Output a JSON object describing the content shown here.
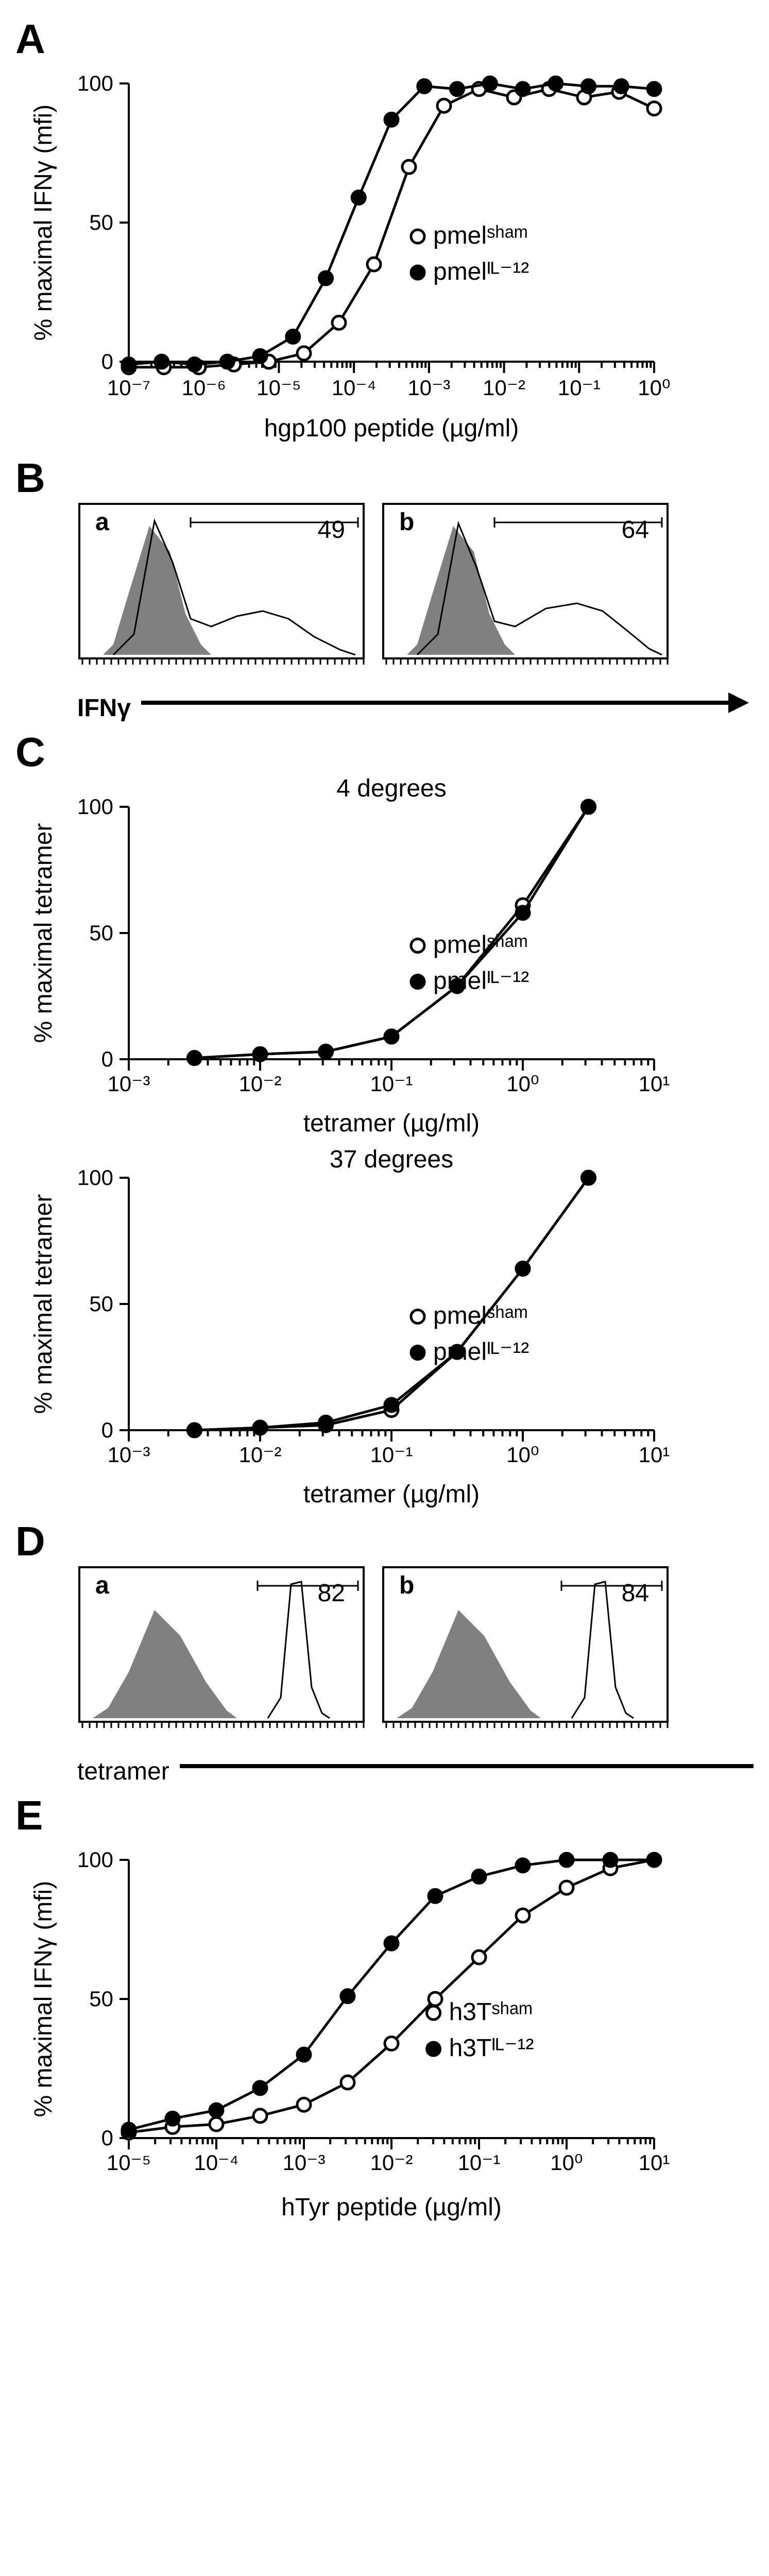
{
  "panelA": {
    "label": "A",
    "type": "line",
    "x_label": "hgp100 peptide (µg/ml)",
    "y_label": "% maximal IFNγ (mfi)",
    "x_ticks": [
      "10⁻⁷",
      "10⁻⁶",
      "10⁻⁵",
      "10⁻⁴",
      "10⁻³",
      "10⁻²",
      "10⁻¹",
      "10⁰"
    ],
    "y_ticks": [
      "0",
      "50",
      "100"
    ],
    "legend": [
      {
        "label": "pmelˢʰᵃᵐ",
        "marker": "open"
      },
      {
        "label": "pmelᴵᴸ⁻¹²",
        "marker": "filled"
      }
    ],
    "series_open": [
      -2,
      -2,
      -2,
      -1,
      0,
      3,
      14,
      35,
      70,
      92,
      98,
      95,
      98,
      95,
      97,
      91
    ],
    "series_filled": [
      -1,
      0,
      -1,
      0,
      2,
      9,
      30,
      59,
      87,
      99,
      98,
      100,
      98,
      100,
      99,
      99,
      98
    ]
  },
  "panelB": {
    "label": "B",
    "axis_label": "IFNγ",
    "hists": [
      {
        "sublabel": "a",
        "value": "49"
      },
      {
        "sublabel": "b",
        "value": "64"
      }
    ]
  },
  "panelC": {
    "label": "C",
    "titles": [
      "4 degrees",
      "37 degrees"
    ],
    "x_label": "tetramer (µg/ml)",
    "y_label": "% maximal tetramer",
    "x_ticks": [
      "10⁻³",
      "10⁻²",
      "10⁻¹",
      "10⁰",
      "10¹"
    ],
    "y_ticks": [
      "0",
      "50",
      "100"
    ],
    "legend": [
      {
        "label": "pmelˢʰᵃᵐ",
        "marker": "open"
      },
      {
        "label": "pmelᴵᴸ⁻¹²",
        "marker": "filled"
      }
    ],
    "c1_open": [
      0.5,
      2,
      3,
      9,
      29,
      61,
      100
    ],
    "c1_filled": [
      0.5,
      2,
      3,
      9,
      29,
      58,
      100
    ],
    "c2_open": [
      0,
      1,
      2,
      8,
      31,
      64,
      100
    ],
    "c2_filled": [
      0,
      1,
      3,
      10,
      31,
      64,
      100
    ]
  },
  "panelD": {
    "label": "D",
    "axis_label": "tetramer",
    "hists": [
      {
        "sublabel": "a",
        "value": "82"
      },
      {
        "sublabel": "b",
        "value": "84"
      }
    ]
  },
  "panelE": {
    "label": "E",
    "type": "line",
    "x_label": "hTyr peptide (µg/ml)",
    "y_label": "% maximal IFNγ (mfi)",
    "x_ticks": [
      "10⁻⁵",
      "10⁻⁴",
      "10⁻³",
      "10⁻²",
      "10⁻¹",
      "10⁰",
      "10¹"
    ],
    "y_ticks": [
      "0",
      "50",
      "100"
    ],
    "legend": [
      {
        "label": "h3Tˢʰᵃᵐ",
        "marker": "open"
      },
      {
        "label": "h3Tᴵᴸ⁻¹²",
        "marker": "filled"
      }
    ],
    "series_open": [
      2,
      4,
      5,
      8,
      12,
      20,
      34,
      50,
      65,
      80,
      90,
      97,
      100
    ],
    "series_filled": [
      3,
      7,
      10,
      18,
      30,
      51,
      70,
      87,
      94,
      98,
      100,
      100,
      100
    ]
  }
}
